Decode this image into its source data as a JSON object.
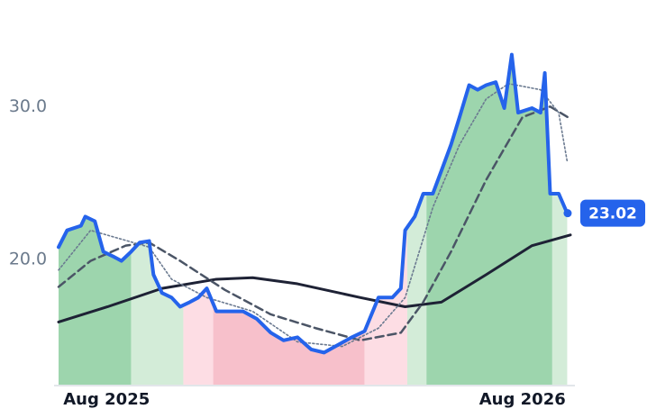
{
  "chart_data": {
    "type": "line",
    "xlim": [
      0,
      480
    ],
    "ylim": [
      11.8,
      36
    ],
    "xticks": [
      {
        "value": 45,
        "label": "Aug 2025"
      },
      {
        "value": 435,
        "label": "Aug 2026"
      }
    ],
    "yticks": [
      {
        "value": 20,
        "label": "20.0"
      },
      {
        "value": 30,
        "label": "30.0"
      }
    ],
    "grid": false,
    "bands": [
      {
        "x": [
          0,
          68
        ],
        "color": "#9dd5ad"
      },
      {
        "x": [
          68,
          117
        ],
        "color": "#d3ecd8"
      },
      {
        "x": [
          117,
          145
        ],
        "color": "#fddde4"
      },
      {
        "x": [
          145,
          287
        ],
        "color": "#f7c0cb"
      },
      {
        "x": [
          287,
          327
        ],
        "color": "#fddde4"
      },
      {
        "x": [
          327,
          345
        ],
        "color": "#d3ecd8"
      },
      {
        "x": [
          345,
          463
        ],
        "color": "#9dd5ad"
      },
      {
        "x": [
          463,
          480
        ],
        "color": "#d3ecd8"
      }
    ],
    "series": [
      {
        "color": "#2563eb",
        "style": "solid",
        "width": 4,
        "x": [
          0,
          8,
          21,
          25,
          34,
          42,
          51,
          59,
          68,
          76,
          85,
          89,
          97,
          106,
          114,
          123,
          131,
          139,
          148,
          161,
          173,
          186,
          199,
          211,
          224,
          237,
          249,
          262,
          275,
          287,
          300,
          313,
          321,
          325,
          334,
          342,
          351,
          359,
          368,
          376,
          385,
          393,
          401,
          410,
          418,
          425,
          431,
          444,
          452,
          456,
          461,
          469,
          477
        ],
        "values": [
          20.8,
          21.9,
          22.2,
          22.8,
          22.5,
          20.5,
          20.2,
          19.9,
          20.5,
          21.1,
          21.2,
          19.0,
          17.8,
          17.5,
          16.9,
          17.2,
          17.5,
          18.1,
          16.6,
          16.6,
          16.6,
          16.1,
          15.2,
          14.7,
          14.9,
          14.1,
          13.9,
          14.4,
          14.9,
          15.3,
          17.5,
          17.5,
          18.1,
          21.9,
          22.8,
          24.3,
          24.3,
          25.8,
          27.5,
          29.3,
          31.4,
          31.1,
          31.4,
          31.6,
          29.9,
          33.4,
          29.6,
          29.9,
          29.6,
          32.2,
          24.3,
          24.3,
          23.02
        ]
      },
      {
        "color": "#1e2235",
        "style": "solid",
        "width": 3,
        "x": [
          0,
          46,
          97,
          148,
          182,
          224,
          283,
          325,
          359,
          401,
          444,
          480
        ],
        "values": [
          15.9,
          16.9,
          18.1,
          18.7,
          18.8,
          18.4,
          17.5,
          16.9,
          17.2,
          19.0,
          20.9,
          21.6
        ]
      },
      {
        "color": "#4b5566",
        "style": "dashed",
        "width": 2.5,
        "x": [
          0,
          30,
          63,
          85,
          114,
          156,
          199,
          241,
          283,
          321,
          342,
          368,
          401,
          435,
          461,
          480
        ],
        "values": [
          18.2,
          19.9,
          20.9,
          21.1,
          19.9,
          18.0,
          16.4,
          15.5,
          14.7,
          15.2,
          17.2,
          20.5,
          25.2,
          29.3,
          30.0,
          29.2
        ]
      },
      {
        "color": "#6b7a90",
        "style": "dotted",
        "width": 1.6,
        "x": [
          0,
          30,
          55,
          85,
          106,
          139,
          182,
          224,
          266,
          300,
          325,
          351,
          376,
          401,
          422,
          452,
          469,
          477
        ],
        "values": [
          19.3,
          21.9,
          21.4,
          20.8,
          18.7,
          17.5,
          16.6,
          14.6,
          14.3,
          15.5,
          17.5,
          23.4,
          27.5,
          30.5,
          31.5,
          31.1,
          29.6,
          26.4
        ]
      }
    ]
  }
}
